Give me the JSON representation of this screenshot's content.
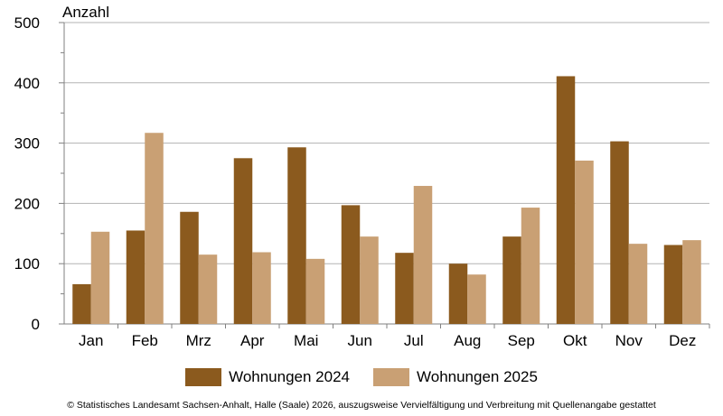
{
  "chart_data": {
    "type": "bar",
    "y_unit_label": "Anzahl",
    "categories": [
      "Jan",
      "Feb",
      "Mrz",
      "Apr",
      "Mai",
      "Jun",
      "Jul",
      "Aug",
      "Sep",
      "Okt",
      "Nov",
      "Dez"
    ],
    "series": [
      {
        "name": "Wohnungen 2024",
        "color": "#8B5A1E",
        "values": [
          66,
          155,
          186,
          275,
          293,
          197,
          118,
          100,
          145,
          411,
          303,
          131
        ]
      },
      {
        "name": "Wohnungen 2025",
        "color": "#C9A074",
        "values": [
          153,
          317,
          115,
          119,
          108,
          145,
          229,
          82,
          193,
          271,
          133,
          139
        ]
      }
    ],
    "ylim": [
      0,
      500
    ],
    "yticks": [
      0,
      100,
      200,
      300,
      400,
      500
    ],
    "grid": true,
    "legend_position": "bottom"
  },
  "footer": "© Statistisches Landesamt Sachsen-Anhalt, Halle (Saale) 2026, auszugsweise Vervielfältigung und Verbreitung mit Quellenangabe gestattet"
}
